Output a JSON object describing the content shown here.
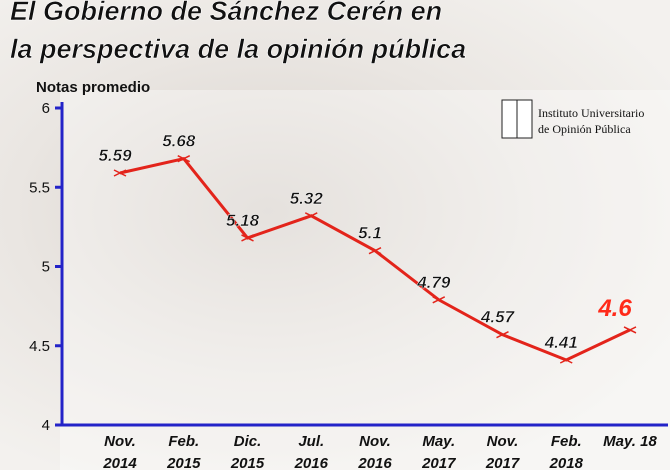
{
  "chart_data": {
    "type": "line",
    "title": [
      "El Gobierno de Sánchez Cerén en",
      "la perspectiva de la opinión pública"
    ],
    "y_label": "Notas promedio",
    "logo_lines": [
      "Instituto Universitario",
      "de Opinión Pública"
    ],
    "categories": [
      "Nov. 2014",
      "Feb. 2015",
      "Dic. 2015",
      "Jul. 2016",
      "Nov. 2016",
      "May. 2017",
      "Nov. 2017",
      "Feb. 2018",
      "May. 18"
    ],
    "series": [
      {
        "name": "Notas promedio",
        "color": "#e3241b",
        "values": [
          5.59,
          5.68,
          5.18,
          5.32,
          5.1,
          4.79,
          4.57,
          4.41,
          4.6
        ]
      }
    ],
    "highlight_color": "#ff2a1a",
    "axis_color": "#2323c8",
    "ylim": [
      4,
      6
    ],
    "yticks": [
      4,
      4.5,
      5,
      5.5,
      6
    ]
  }
}
